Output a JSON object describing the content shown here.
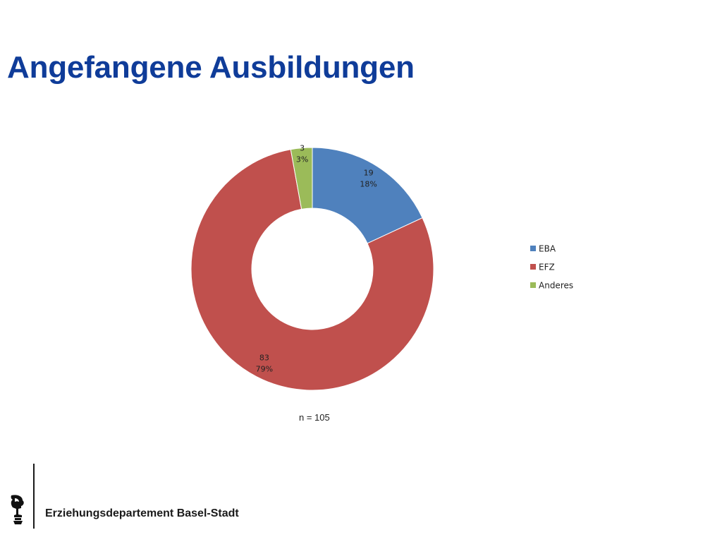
{
  "slide": {
    "title": "Angefangene Ausbildungen",
    "note": "n = 105",
    "footer": "Erziehungsdepartement Basel-Stadt"
  },
  "chart_data": {
    "type": "pie",
    "variant": "doughnut",
    "title": "",
    "series": [
      {
        "categories": [
          "EBA",
          "EFZ",
          "Anderes"
        ],
        "values": [
          19,
          83,
          3
        ],
        "percent_labels": [
          "18%",
          "79%",
          "3%"
        ],
        "colors": [
          "#4f81bd",
          "#c0504d",
          "#9bbb59"
        ]
      }
    ],
    "legend": {
      "position": "right",
      "entries": [
        "EBA",
        "EFZ",
        "Anderes"
      ]
    }
  }
}
